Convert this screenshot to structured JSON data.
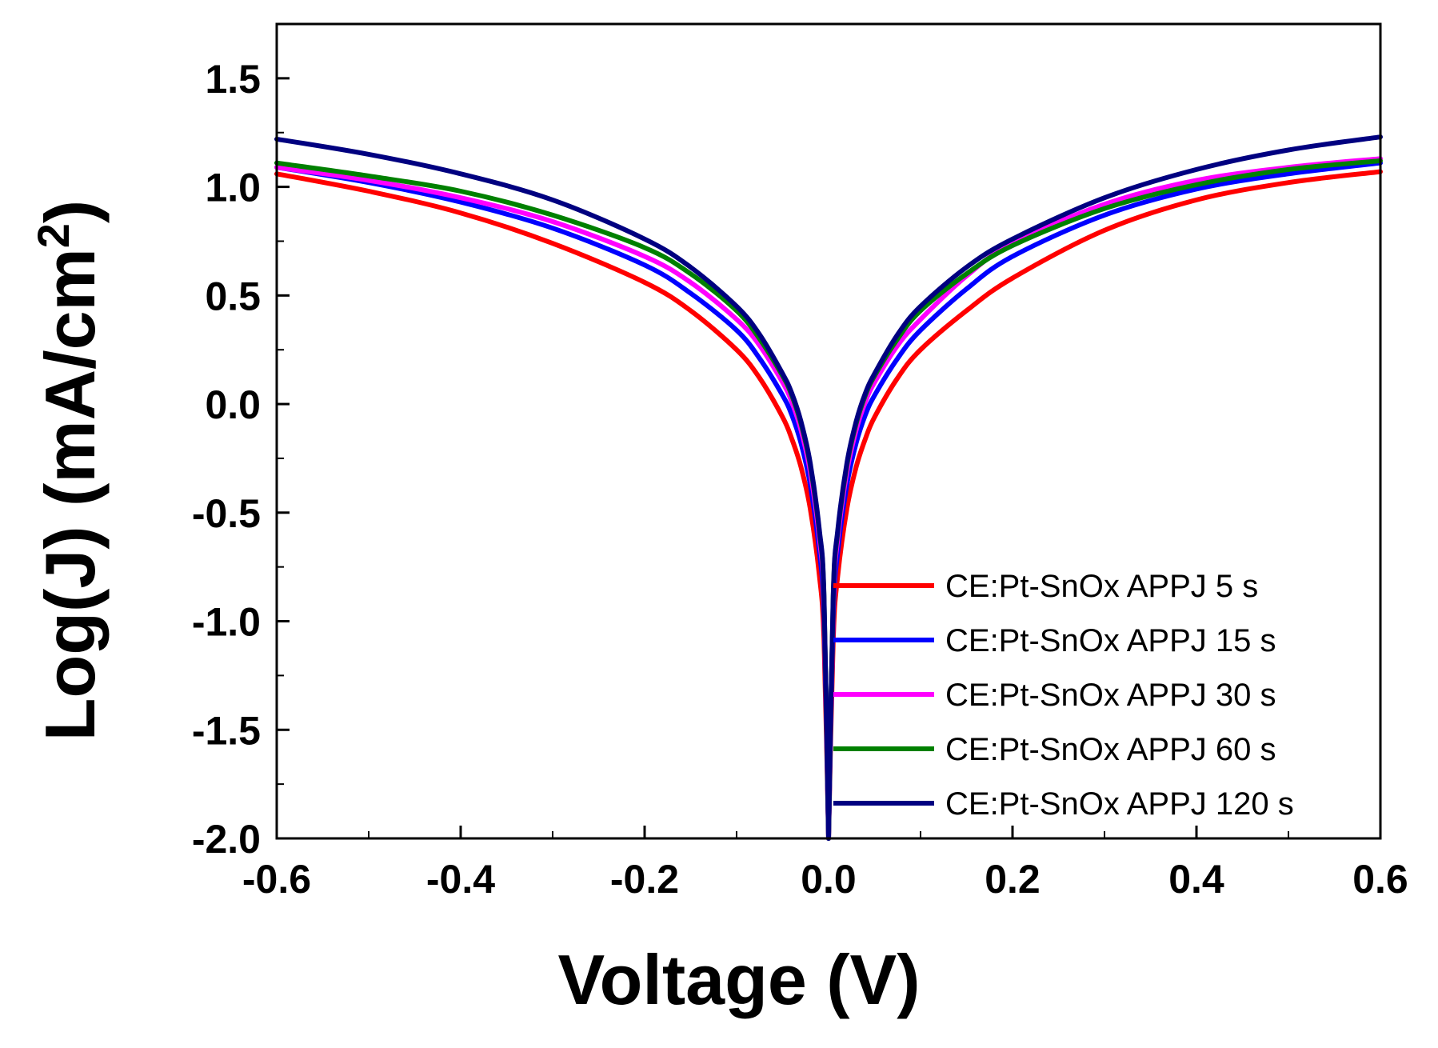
{
  "chart_data": {
    "type": "line",
    "title": "",
    "xlabel": "Voltage (V)",
    "ylabel_main": "Log(J) (mA/cm",
    "ylabel_sup": "2",
    "ylabel_close": ")",
    "xlim": [
      -0.6,
      0.6
    ],
    "ylim": [
      -2.0,
      1.75
    ],
    "xticks": [
      -0.6,
      -0.4,
      -0.2,
      0.0,
      0.2,
      0.4,
      0.6
    ],
    "xtick_labels": [
      "-0.6",
      "-0.4",
      "-0.2",
      "0.0",
      "0.2",
      "0.4",
      "0.6"
    ],
    "yticks": [
      -2.0,
      -1.5,
      -1.0,
      -0.5,
      0.0,
      0.5,
      1.0,
      1.5
    ],
    "ytick_labels": [
      "-2.0",
      "-1.5",
      "-1.0",
      "-0.5",
      "0.0",
      "0.5",
      "1.0",
      "1.5"
    ],
    "grid": false,
    "legend_position": "bottom-right",
    "x": [
      -0.6,
      -0.5,
      -0.4,
      -0.3,
      -0.2,
      -0.15,
      -0.1,
      -0.075,
      -0.05,
      -0.04,
      -0.03,
      -0.02,
      -0.01,
      -0.005,
      0.0,
      0.005,
      0.01,
      0.02,
      0.03,
      0.04,
      0.05,
      0.075,
      0.1,
      0.15,
      0.2,
      0.3,
      0.4,
      0.5,
      0.6
    ],
    "series": [
      {
        "name": "CE:Pt-SnOx APPJ 5 s",
        "color": "#ff0000",
        "values": [
          1.06,
          0.98,
          0.88,
          0.74,
          0.56,
          0.43,
          0.25,
          0.12,
          -0.06,
          -0.16,
          -0.29,
          -0.48,
          -0.79,
          -1.09,
          -2.0,
          -1.09,
          -0.79,
          -0.48,
          -0.29,
          -0.16,
          -0.06,
          0.12,
          0.25,
          0.43,
          0.58,
          0.8,
          0.94,
          1.02,
          1.07
        ]
      },
      {
        "name": "CE:Pt-SnOx APPJ 15 s",
        "color": "#0000ff",
        "values": [
          1.09,
          1.02,
          0.93,
          0.81,
          0.64,
          0.51,
          0.34,
          0.21,
          0.04,
          -0.05,
          -0.18,
          -0.37,
          -0.68,
          -0.98,
          -2.0,
          -0.98,
          -0.68,
          -0.37,
          -0.18,
          -0.05,
          0.04,
          0.21,
          0.34,
          0.53,
          0.68,
          0.87,
          0.99,
          1.06,
          1.11
        ]
      },
      {
        "name": "CE:Pt-SnOx APPJ 30 s",
        "color": "#ff00ff",
        "values": [
          1.09,
          1.03,
          0.95,
          0.84,
          0.68,
          0.56,
          0.39,
          0.27,
          0.1,
          0.01,
          -0.12,
          -0.31,
          -0.62,
          -0.92,
          -2.0,
          -0.92,
          -0.62,
          -0.31,
          -0.12,
          0.01,
          0.1,
          0.27,
          0.39,
          0.59,
          0.74,
          0.92,
          1.03,
          1.09,
          1.13
        ]
      },
      {
        "name": "CE:Pt-SnOx APPJ 60 s",
        "color": "#008000",
        "values": [
          1.11,
          1.05,
          0.98,
          0.87,
          0.72,
          0.6,
          0.43,
          0.3,
          0.13,
          0.04,
          -0.09,
          -0.28,
          -0.59,
          -0.89,
          -2.0,
          -0.89,
          -0.59,
          -0.28,
          -0.09,
          0.04,
          0.13,
          0.3,
          0.43,
          0.6,
          0.73,
          0.9,
          1.01,
          1.08,
          1.12
        ]
      },
      {
        "name": "CE:Pt-SnOx APPJ 120 s",
        "color": "#000080",
        "values": [
          1.22,
          1.15,
          1.06,
          0.94,
          0.76,
          0.63,
          0.45,
          0.32,
          0.14,
          0.05,
          -0.08,
          -0.27,
          -0.58,
          -0.88,
          -2.0,
          -0.88,
          -0.58,
          -0.27,
          -0.08,
          0.05,
          0.14,
          0.32,
          0.45,
          0.63,
          0.76,
          0.95,
          1.08,
          1.17,
          1.23
        ]
      }
    ]
  }
}
